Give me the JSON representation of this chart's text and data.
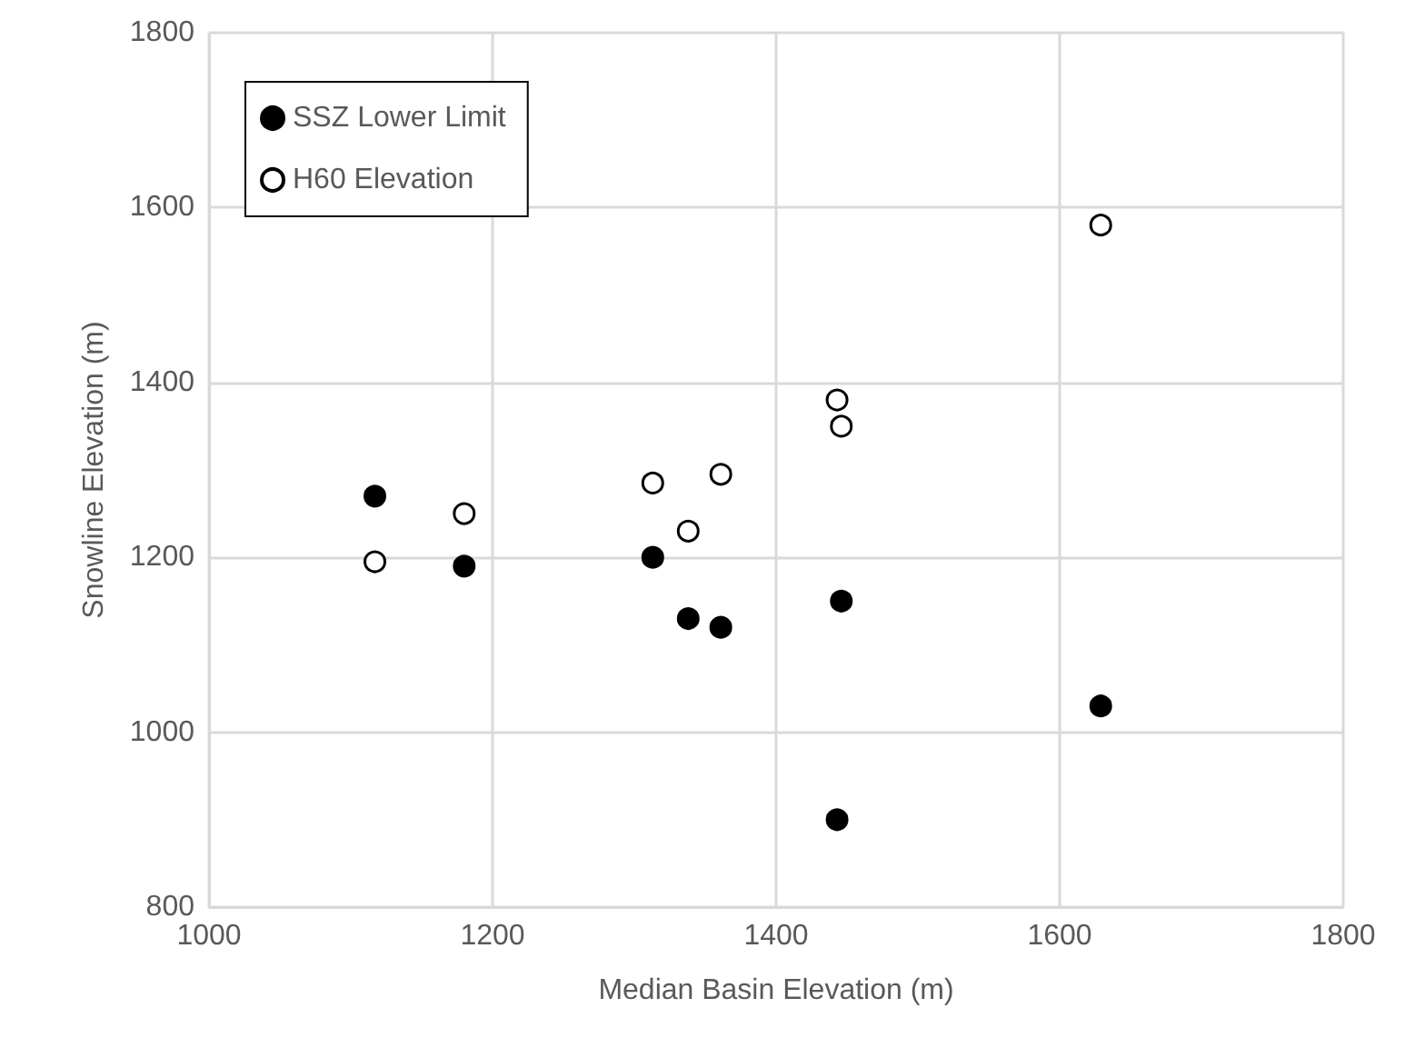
{
  "chart_data": {
    "type": "scatter",
    "xlabel": "Median Basin Elevation (m)",
    "ylabel": "Snowline Elevation (m)",
    "xlim": [
      1000,
      1800
    ],
    "xticks": [
      1000,
      1200,
      1400,
      1600,
      1800
    ],
    "ylim": [
      800,
      1800
    ],
    "yticks": [
      800,
      1000,
      1200,
      1400,
      1600,
      1800
    ],
    "grid": true,
    "legend": "top left",
    "series": [
      {
        "name": "SSZ Lower Limit",
        "color": "#000000",
        "marker": "circle",
        "x": [
          1117,
          1180,
          1313,
          1338,
          1361,
          1446,
          1443,
          1629
        ],
        "values": [
          1270,
          1190,
          1200,
          1130,
          1120,
          1150,
          900,
          1030
        ]
      },
      {
        "name": "H60 Elevation",
        "color": "#ffffff",
        "marker": "circle",
        "x": [
          1117,
          1180,
          1313,
          1338,
          1361,
          1443,
          1446,
          1629
        ],
        "values": [
          1195,
          1250,
          1285,
          1230,
          1295,
          1380,
          1350,
          1580
        ]
      }
    ]
  }
}
